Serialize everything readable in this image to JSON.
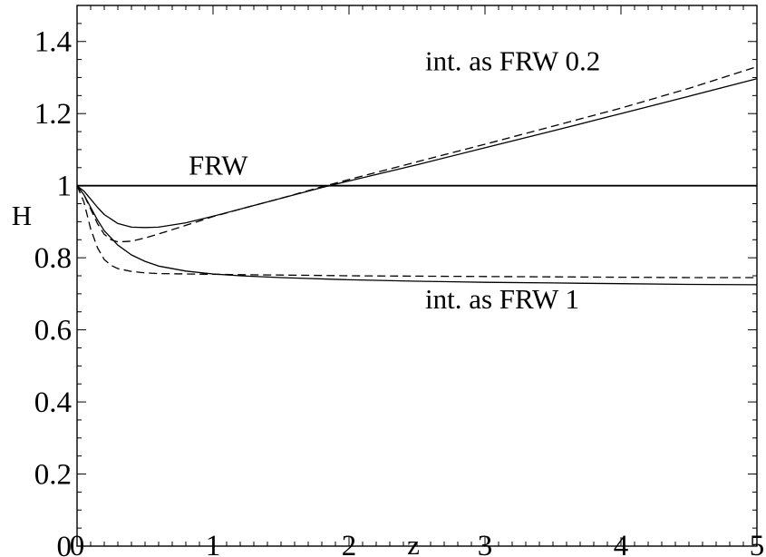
{
  "chart_data": {
    "type": "line",
    "title": "",
    "xlabel": "z",
    "ylabel": "H",
    "xlim": [
      0,
      5
    ],
    "ylim": [
      0,
      1.5
    ],
    "grid": false,
    "legend": "none",
    "x_ticks": [
      {
        "value": 0,
        "label": "0"
      },
      {
        "value": 1,
        "label": "1"
      },
      {
        "value": 2,
        "label": "2"
      },
      {
        "value": 3,
        "label": "3"
      },
      {
        "value": 4,
        "label": "4"
      },
      {
        "value": 5,
        "label": "5"
      }
    ],
    "y_ticks": [
      {
        "value": 0,
        "label": "0"
      },
      {
        "value": 0.2,
        "label": "0.2"
      },
      {
        "value": 0.4,
        "label": "0.4"
      },
      {
        "value": 0.6,
        "label": "0.6"
      },
      {
        "value": 0.8,
        "label": "0.8"
      },
      {
        "value": 1,
        "label": "1"
      },
      {
        "value": 1.2,
        "label": "1.2"
      },
      {
        "value": 1.4,
        "label": "1.4"
      }
    ],
    "annotations": [
      {
        "text": "FRW",
        "x": 0.82,
        "y": 1.03
      },
      {
        "text": "int. as FRW 0.2",
        "x": 2.56,
        "y": 1.32
      },
      {
        "text": "int. as FRW 1",
        "x": 2.56,
        "y": 0.66
      }
    ],
    "series": [
      {
        "style": "solid",
        "color": "#000000",
        "x": [
          0,
          5
        ],
        "y": [
          1.0,
          1.0
        ]
      },
      {
        "style": "solid",
        "color": "#000000",
        "x": [
          0,
          0.05,
          0.1,
          0.15,
          0.2,
          0.3,
          0.4,
          0.5,
          0.6,
          0.8,
          1.0,
          1.25,
          1.5,
          1.8,
          2.0,
          2.5,
          3.0,
          3.5,
          4.0,
          4.5,
          5.0
        ],
        "y": [
          1.0,
          0.985,
          0.963,
          0.94,
          0.92,
          0.895,
          0.885,
          0.884,
          0.885,
          0.897,
          0.915,
          0.94,
          0.965,
          0.995,
          1.013,
          1.058,
          1.105,
          1.152,
          1.2,
          1.248,
          1.297
        ]
      },
      {
        "style": "dashed",
        "color": "#000000",
        "x": [
          0,
          0.05,
          0.1,
          0.15,
          0.2,
          0.25,
          0.3,
          0.4,
          0.5,
          0.6,
          0.8,
          1.0,
          1.25,
          1.5,
          1.8,
          2.0,
          2.5,
          3.0,
          3.5,
          4.0,
          4.5,
          5.0
        ],
        "y": [
          1.0,
          0.975,
          0.935,
          0.895,
          0.865,
          0.85,
          0.844,
          0.846,
          0.855,
          0.866,
          0.89,
          0.914,
          0.94,
          0.965,
          0.997,
          1.017,
          1.066,
          1.115,
          1.165,
          1.215,
          1.27,
          1.33
        ]
      },
      {
        "style": "solid",
        "color": "#000000",
        "x": [
          0,
          0.05,
          0.1,
          0.15,
          0.2,
          0.3,
          0.4,
          0.5,
          0.6,
          0.8,
          1.0,
          1.2,
          1.5,
          2.0,
          2.5,
          3.0,
          3.5,
          4.0,
          4.5,
          5.0
        ],
        "y": [
          1.0,
          0.975,
          0.94,
          0.905,
          0.875,
          0.835,
          0.808,
          0.79,
          0.777,
          0.763,
          0.755,
          0.75,
          0.745,
          0.739,
          0.735,
          0.732,
          0.73,
          0.728,
          0.726,
          0.725
        ]
      },
      {
        "style": "dashed",
        "color": "#000000",
        "x": [
          0,
          0.05,
          0.1,
          0.15,
          0.2,
          0.25,
          0.3,
          0.4,
          0.5,
          0.6,
          0.8,
          1.0,
          1.2,
          1.5,
          2.0,
          2.5,
          3.0,
          3.5,
          4.0,
          4.5,
          5.0
        ],
        "y": [
          1.0,
          0.955,
          0.88,
          0.828,
          0.795,
          0.779,
          0.77,
          0.762,
          0.758,
          0.756,
          0.755,
          0.754,
          0.753,
          0.752,
          0.75,
          0.749,
          0.748,
          0.747,
          0.746,
          0.745,
          0.745
        ]
      }
    ]
  }
}
